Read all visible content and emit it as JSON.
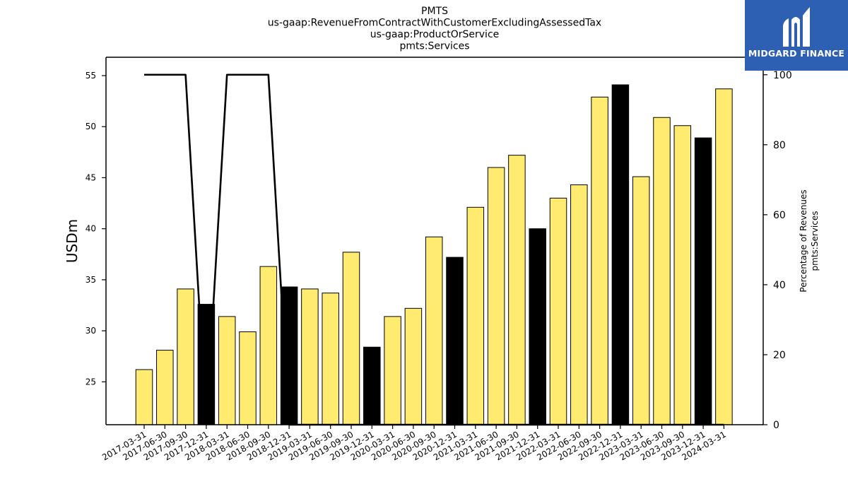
{
  "title_lines": [
    "PMTS",
    "us-gaap:RevenueFromContractWithCustomerExcludingAssessedTax",
    "us-gaap:ProductOrService",
    "pmts:Services"
  ],
  "logo": {
    "text": "MIDGARD FINANCE",
    "background": "#2d5fb3"
  },
  "colors": {
    "bar_normal": "#ffeb70",
    "bar_highlight": "#000000",
    "line": "#000000"
  },
  "chart_data": {
    "type": "bar",
    "title": "PMTS\nus-gaap:RevenueFromContractWithCustomerExcludingAssessedTax\nus-gaap:ProductOrService\npmts:Services",
    "xlabel": "",
    "ylabel": "USDm",
    "y2label_lines": [
      "Percentage of Revenues",
      "pmts:Services"
    ],
    "ylim": [
      20.8,
      56.8
    ],
    "y2lim": [
      0,
      105
    ],
    "yticks": [
      25,
      30,
      35,
      40,
      45,
      50,
      55
    ],
    "y2ticks": [
      0,
      20,
      40,
      60,
      80,
      100
    ],
    "grid": false,
    "categories": [
      "2017-03-31",
      "2017-06-30",
      "2017-09-30",
      "2017-12-31",
      "2018-03-31",
      "2018-06-30",
      "2018-09-30",
      "2018-12-31",
      "2019-03-31",
      "2019-06-30",
      "2019-09-30",
      "2019-12-31",
      "2020-03-31",
      "2020-06-30",
      "2020-09-30",
      "2020-12-31",
      "2021-03-31",
      "2021-06-30",
      "2021-09-30",
      "2021-12-31",
      "2022-03-31",
      "2022-06-30",
      "2022-09-30",
      "2022-12-31",
      "2023-03-31",
      "2023-06-30",
      "2023-09-30",
      "2023-12-31",
      "2024-03-31"
    ],
    "series": [
      {
        "type": "bar",
        "axis": "left",
        "values": [
          26.2,
          28.1,
          34.1,
          32.6,
          31.4,
          29.9,
          36.3,
          34.3,
          34.1,
          33.7,
          37.7,
          28.4,
          31.4,
          32.2,
          39.2,
          37.2,
          42.1,
          46.0,
          47.2,
          40.0,
          43.0,
          44.3,
          52.9,
          54.1,
          45.1,
          50.9,
          50.1,
          48.9,
          53.7
        ],
        "highlight": [
          false,
          false,
          false,
          true,
          false,
          false,
          false,
          true,
          false,
          false,
          false,
          true,
          false,
          false,
          false,
          true,
          false,
          false,
          false,
          true,
          false,
          false,
          false,
          true,
          false,
          false,
          false,
          true,
          false
        ]
      },
      {
        "type": "line",
        "axis": "right",
        "values": [
          100,
          100,
          100,
          0,
          100,
          100,
          100,
          0,
          0,
          0,
          0,
          0,
          0,
          0,
          0,
          0,
          0,
          0,
          0,
          0,
          0,
          0,
          0,
          0,
          0,
          0,
          0,
          0,
          0
        ]
      }
    ]
  }
}
